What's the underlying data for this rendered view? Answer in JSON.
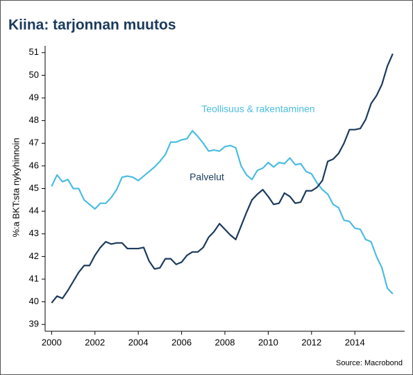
{
  "chart_data": {
    "type": "line",
    "title": "Kiina: tarjonnan muutos",
    "y_label": "%:a BKT:sta nykyhinnoin",
    "source": "Source: Macrobond",
    "x": [
      2000,
      2000.25,
      2000.5,
      2000.75,
      2001,
      2001.25,
      2001.5,
      2001.75,
      2002,
      2002.25,
      2002.5,
      2002.75,
      2003,
      2003.25,
      2003.5,
      2003.75,
      2004,
      2004.25,
      2004.5,
      2004.75,
      2005,
      2005.25,
      2005.5,
      2005.75,
      2006,
      2006.25,
      2006.5,
      2006.75,
      2007,
      2007.25,
      2007.5,
      2007.75,
      2008,
      2008.25,
      2008.5,
      2008.75,
      2009,
      2009.25,
      2009.5,
      2009.75,
      2010,
      2010.25,
      2010.5,
      2010.75,
      2011,
      2011.25,
      2011.5,
      2011.75,
      2012,
      2012.25,
      2012.5,
      2012.75,
      2013,
      2013.25,
      2013.5,
      2013.75,
      2014,
      2014.25,
      2014.5,
      2014.75,
      2015,
      2015.25,
      2015.5,
      2015.75
    ],
    "series": [
      {
        "name": "Teollisuus & rakentaminen",
        "color": "#4bbde0",
        "values": [
          45.1,
          45.6,
          45.3,
          45.4,
          45.0,
          45.0,
          44.5,
          44.3,
          44.1,
          44.35,
          44.35,
          44.6,
          44.95,
          45.5,
          45.55,
          45.5,
          45.35,
          45.55,
          45.75,
          45.95,
          46.2,
          46.5,
          47.05,
          47.05,
          47.15,
          47.2,
          47.55,
          47.3,
          47.0,
          46.65,
          46.7,
          46.65,
          46.85,
          46.9,
          46.8,
          46.0,
          45.6,
          45.4,
          45.8,
          45.9,
          46.15,
          45.95,
          46.15,
          46.1,
          46.35,
          46.05,
          46.1,
          45.75,
          45.65,
          45.25,
          44.95,
          44.75,
          44.3,
          44.15,
          43.6,
          43.55,
          43.25,
          43.2,
          42.75,
          42.65,
          42.0,
          41.5,
          40.6,
          40.35
        ]
      },
      {
        "name": "Palvelut",
        "color": "#1b3a5c",
        "values": [
          39.95,
          40.25,
          40.15,
          40.5,
          40.9,
          41.3,
          41.6,
          41.6,
          42.05,
          42.4,
          42.65,
          42.55,
          42.6,
          42.6,
          42.35,
          42.35,
          42.35,
          42.4,
          41.8,
          41.45,
          41.5,
          41.9,
          41.9,
          41.65,
          41.75,
          42.05,
          42.2,
          42.2,
          42.4,
          42.85,
          43.1,
          43.45,
          43.2,
          42.95,
          42.75,
          43.35,
          43.95,
          44.5,
          44.75,
          44.95,
          44.65,
          44.3,
          44.35,
          44.8,
          44.65,
          44.35,
          44.4,
          44.9,
          44.9,
          45.05,
          45.35,
          46.2,
          46.3,
          46.55,
          47.0,
          47.6,
          47.6,
          47.65,
          48.05,
          48.75,
          49.1,
          49.6,
          50.4,
          50.95
        ]
      }
    ],
    "xlim": [
      1999.7,
      2016.3
    ],
    "xticks": [
      2000,
      2002,
      2004,
      2006,
      2008,
      2010,
      2012,
      2014
    ],
    "ylim": [
      38.7,
      51.3
    ],
    "yticks": [
      39,
      40,
      41,
      42,
      43,
      44,
      45,
      46,
      47,
      48,
      49,
      50,
      51
    ]
  }
}
